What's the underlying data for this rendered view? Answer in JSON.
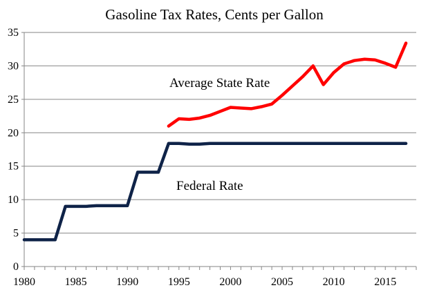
{
  "chart_data": {
    "type": "line",
    "title": "Gasoline Tax Rates, Cents per Gallon",
    "xlabel": "",
    "ylabel": "",
    "xlim": [
      1980,
      2018
    ],
    "ylim": [
      0,
      35
    ],
    "x_ticks": [
      1980,
      1985,
      1990,
      1995,
      2000,
      2005,
      2010,
      2015
    ],
    "y_ticks": [
      0,
      5,
      10,
      15,
      20,
      25,
      30,
      35
    ],
    "grid": "horizontal",
    "annotations": [
      {
        "text": "Average State Rate",
        "series": 0
      },
      {
        "text": "Federal Rate",
        "series": 1
      }
    ],
    "series": [
      {
        "color": "#ff0000",
        "x": [
          1994,
          1995,
          1996,
          1997,
          1998,
          1999,
          2000,
          2001,
          2002,
          2003,
          2004,
          2005,
          2006,
          2007,
          2008,
          2009,
          2010,
          2011,
          2012,
          2013,
          2014,
          2015,
          2016,
          2017
        ],
        "values": [
          21.0,
          22.1,
          22.0,
          22.2,
          22.6,
          23.2,
          23.8,
          23.7,
          23.6,
          23.9,
          24.3,
          25.6,
          27.0,
          28.4,
          30.0,
          27.2,
          29.0,
          30.3,
          30.8,
          31.0,
          30.9,
          30.4,
          29.8,
          33.4
        ]
      },
      {
        "color": "#0f2348",
        "x": [
          1980,
          1983,
          1984,
          1986,
          1987,
          1990,
          1991,
          1993,
          1994,
          1995,
          1996,
          1997,
          1998,
          2017
        ],
        "values": [
          4.0,
          4.0,
          9.0,
          9.0,
          9.1,
          9.1,
          14.1,
          14.1,
          18.4,
          18.4,
          18.3,
          18.3,
          18.4,
          18.4
        ]
      }
    ]
  }
}
